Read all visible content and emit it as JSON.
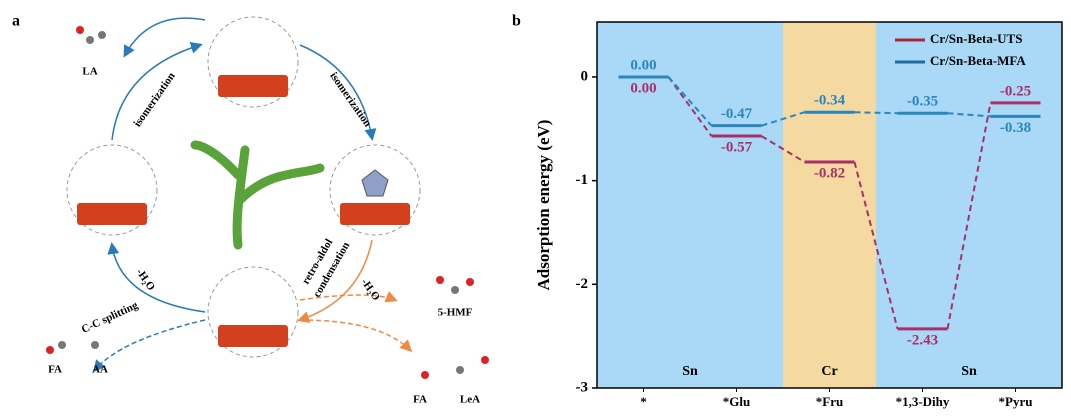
{
  "panel_a": {
    "letter": "a",
    "labels": {
      "la": "LA",
      "iso_left": "isomerization",
      "iso_right": "isomerization",
      "retro": "retro-aldol",
      "condensation": "condensation",
      "h2o_right": "-H₂O",
      "h2o_left": "-H₂O",
      "cc": "C-C splitting",
      "hmf": "5-HMF",
      "fa_left": "FA",
      "aa": "AA",
      "fa_right": "FA",
      "lea": "LeA"
    }
  },
  "chart_data": {
    "type": "energy_levels",
    "panel_letter": "b",
    "y_label": "Adsorption energy (eV)",
    "categories": [
      "*",
      "*Glu",
      "*Fru",
      "*1,3-Dihy",
      "*Pyru"
    ],
    "regions": [
      {
        "label": "Sn",
        "from": 0,
        "to": 1,
        "color": "#a9d9f6"
      },
      {
        "label": "Cr",
        "from": 2,
        "to": 2,
        "color": "#f4d9a0"
      },
      {
        "label": "Sn",
        "from": 3,
        "to": 4,
        "color": "#a9d9f6"
      }
    ],
    "series": [
      {
        "name": "Cr/Sn-Beta-UTS",
        "color": "#a8306a",
        "legend_color": "#a8283a",
        "values": [
          0,
          -0.57,
          -0.82,
          -2.43,
          -0.25
        ],
        "value_labels": [
          "0.00",
          "-0.57",
          "-0.82",
          "-2.43",
          "-0.25"
        ]
      },
      {
        "name": "Cr/Sn-Beta-MFA",
        "color": "#2a86bd",
        "legend_color": "#1f6aa5",
        "values": [
          0,
          -0.47,
          -0.34,
          -0.35,
          -0.38
        ],
        "value_labels": [
          "0.00",
          "-0.47",
          "-0.34",
          "-0.35",
          "-0.38"
        ]
      }
    ],
    "ylim": [
      -3,
      0.53
    ],
    "yticks": [
      -3,
      -2,
      -1,
      0
    ]
  }
}
